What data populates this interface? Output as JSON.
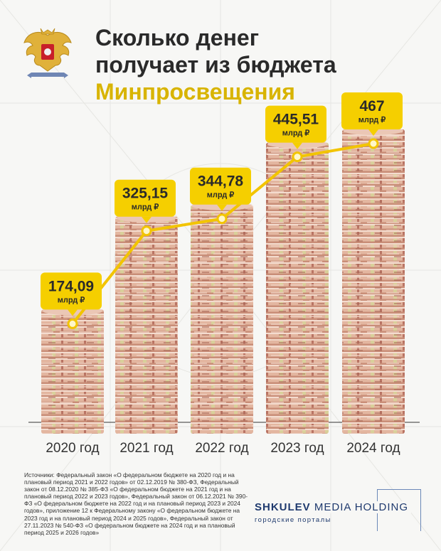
{
  "title": {
    "line1": "Сколько денег",
    "line2": "получает из бюджета",
    "highlight": "Минпросвещения"
  },
  "emblem_icon": "russian-coat-of-arms-icon",
  "chart_data": {
    "type": "bar",
    "categories": [
      "2020 год",
      "2021 год",
      "2022 год",
      "2023 год",
      "2024 год"
    ],
    "values": [
      174.09,
      325.15,
      344.78,
      445.51,
      467
    ],
    "data_labels": [
      "174,09",
      "325,15",
      "344,78",
      "445,51",
      "467"
    ],
    "unit_label": "млрд ₽",
    "title": "Сколько денег получает из бюджета Минпросвещения",
    "xlabel": "",
    "ylabel": "",
    "overlay_line": true,
    "bar_texture": "stacked-banknotes",
    "colors": {
      "accent": "#f5cf00",
      "line": "#f2c400",
      "note": "#d9a48c"
    }
  },
  "sources": "Источники: Федеральный закон «О федеральном бюджете на 2020 год и на плановый период 2021 и 2022 годов» от 02.12.2019 № 380-ФЗ, Федеральный закон от 08.12.2020 № 385-ФЗ «О федеральном бюджете на 2021 год и на плановый период 2022 и 2023 годов», Федеральный закон от 06.12.2021 № 390-ФЗ «О федеральном бюджете на 2022 год и на плановый период 2023 и 2024 годов», приложение 12 к Федеральному закону «О федеральном бюджете на 2023 год и на плановый период 2024 и 2025 годов», Федеральный закон от 27.11.2023 № 540-ФЗ «О федеральном бюджете на 2024 год и на плановый период 2025 и 2026 годов»",
  "brand": {
    "bold": "SHKULEV",
    "rest": "MEDIA HOLDING",
    "sub": "городские порталы"
  }
}
